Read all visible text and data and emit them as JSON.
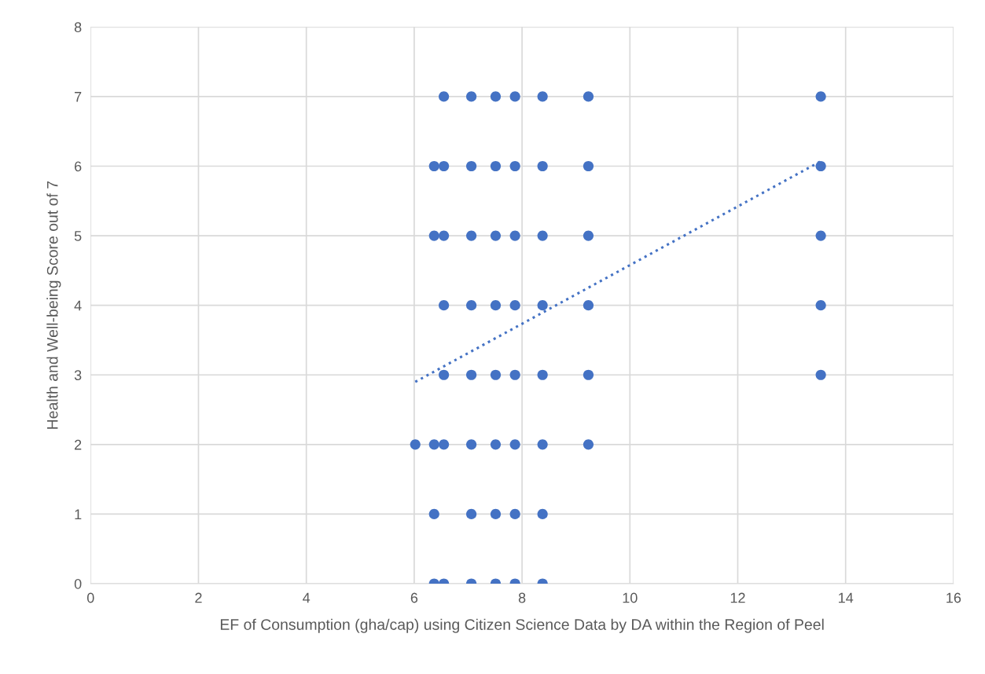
{
  "chart_data": {
    "type": "scatter",
    "xlabel": "EF of Consumption (gha/cap) using Citizen Science Data by DA within the Region of Peel",
    "ylabel": "Health and Well-being Score out of 7",
    "xlim": [
      0,
      16
    ],
    "xticks": [
      0,
      2,
      4,
      6,
      8,
      10,
      12,
      14,
      16
    ],
    "ylim": [
      0,
      8
    ],
    "yticks": [
      0,
      1,
      2,
      3,
      4,
      5,
      6,
      7,
      8
    ],
    "grid": true,
    "series": [
      {
        "color": "#4472c4",
        "marker": "circle",
        "x": [
          6.02,
          6.37,
          6.37,
          6.37,
          6.37,
          6.37,
          6.55,
          6.55,
          6.55,
          6.55,
          6.55,
          6.55,
          6.55,
          7.06,
          7.06,
          7.06,
          7.06,
          7.06,
          7.06,
          7.06,
          7.06,
          7.51,
          7.51,
          7.51,
          7.51,
          7.51,
          7.51,
          7.51,
          7.51,
          7.87,
          7.87,
          7.87,
          7.87,
          7.87,
          7.87,
          7.87,
          7.87,
          8.38,
          8.38,
          8.38,
          8.38,
          8.38,
          8.38,
          8.38,
          8.38,
          9.23,
          9.23,
          9.23,
          9.23,
          9.23,
          9.23,
          13.54,
          13.54,
          13.54,
          13.54,
          13.54
        ],
        "values": [
          2,
          6,
          5,
          2,
          1,
          0,
          7,
          6,
          5,
          4,
          3,
          2,
          0,
          7,
          6,
          5,
          4,
          3,
          2,
          1,
          0,
          7,
          6,
          5,
          4,
          3,
          2,
          1,
          0,
          7,
          6,
          5,
          4,
          3,
          2,
          1,
          0,
          7,
          6,
          5,
          4,
          3,
          2,
          1,
          0,
          7,
          6,
          5,
          4,
          3,
          2,
          7,
          6,
          5,
          4,
          3
        ]
      },
      {
        "type": "line",
        "color": "#4472c4",
        "line_style": "dotted",
        "marker": "none",
        "x": [
          6.02,
          13.54
        ],
        "values": [
          2.9,
          6.07
        ]
      }
    ]
  }
}
